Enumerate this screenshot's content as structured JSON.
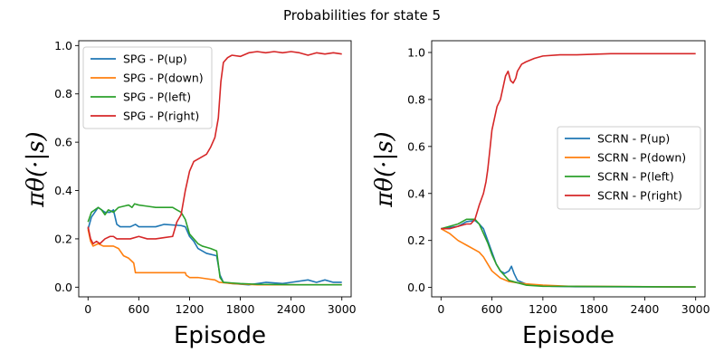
{
  "figure": {
    "title": "Probabilities for state 5"
  },
  "chart_data": [
    {
      "type": "line",
      "xlabel": "Episode",
      "ylabel": "πθ(·|s)",
      "xlim": [
        -110,
        3110
      ],
      "ylim": [
        -0.04,
        1.02
      ],
      "xticks": [
        0,
        600,
        1200,
        1800,
        2400,
        3000
      ],
      "yticks": [
        0.0,
        0.2,
        0.4,
        0.6,
        0.8,
        1.0
      ],
      "grid": false,
      "legend_position": "top-left",
      "series": [
        {
          "name": "SPG - P(up)",
          "color": "#1f77b4",
          "points": [
            [
              0,
              0.24
            ],
            [
              40,
              0.29
            ],
            [
              80,
              0.31
            ],
            [
              120,
              0.33
            ],
            [
              160,
              0.32
            ],
            [
              200,
              0.31
            ],
            [
              260,
              0.31
            ],
            [
              300,
              0.32
            ],
            [
              340,
              0.26
            ],
            [
              380,
              0.25
            ],
            [
              500,
              0.25
            ],
            [
              560,
              0.26
            ],
            [
              600,
              0.25
            ],
            [
              800,
              0.25
            ],
            [
              900,
              0.26
            ],
            [
              1100,
              0.255
            ],
            [
              1150,
              0.25
            ],
            [
              1200,
              0.21
            ],
            [
              1250,
              0.19
            ],
            [
              1300,
              0.16
            ],
            [
              1400,
              0.14
            ],
            [
              1520,
              0.13
            ],
            [
              1560,
              0.05
            ],
            [
              1600,
              0.02
            ],
            [
              1700,
              0.015
            ],
            [
              1900,
              0.01
            ],
            [
              2100,
              0.02
            ],
            [
              2300,
              0.015
            ],
            [
              2400,
              0.02
            ],
            [
              2600,
              0.03
            ],
            [
              2700,
              0.02
            ],
            [
              2800,
              0.03
            ],
            [
              2900,
              0.02
            ],
            [
              3000,
              0.02
            ]
          ]
        },
        {
          "name": "SPG - P(down)",
          "color": "#ff7f0e",
          "points": [
            [
              0,
              0.24
            ],
            [
              30,
              0.19
            ],
            [
              60,
              0.17
            ],
            [
              120,
              0.18
            ],
            [
              180,
              0.17
            ],
            [
              240,
              0.17
            ],
            [
              300,
              0.17
            ],
            [
              360,
              0.16
            ],
            [
              420,
              0.13
            ],
            [
              480,
              0.12
            ],
            [
              540,
              0.1
            ],
            [
              560,
              0.06
            ],
            [
              900,
              0.06
            ],
            [
              1150,
              0.06
            ],
            [
              1160,
              0.05
            ],
            [
              1200,
              0.04
            ],
            [
              1300,
              0.04
            ],
            [
              1400,
              0.035
            ],
            [
              1500,
              0.03
            ],
            [
              1550,
              0.02
            ],
            [
              1700,
              0.015
            ],
            [
              2000,
              0.01
            ],
            [
              2500,
              0.01
            ],
            [
              3000,
              0.01
            ]
          ]
        },
        {
          "name": "SPG - P(left)",
          "color": "#2ca02c",
          "points": [
            [
              0,
              0.27
            ],
            [
              40,
              0.31
            ],
            [
              80,
              0.32
            ],
            [
              120,
              0.33
            ],
            [
              160,
              0.32
            ],
            [
              200,
              0.3
            ],
            [
              240,
              0.32
            ],
            [
              300,
              0.31
            ],
            [
              360,
              0.33
            ],
            [
              420,
              0.335
            ],
            [
              480,
              0.34
            ],
            [
              520,
              0.33
            ],
            [
              550,
              0.345
            ],
            [
              600,
              0.34
            ],
            [
              700,
              0.335
            ],
            [
              800,
              0.33
            ],
            [
              900,
              0.33
            ],
            [
              1000,
              0.33
            ],
            [
              1050,
              0.32
            ],
            [
              1100,
              0.31
            ],
            [
              1150,
              0.28
            ],
            [
              1200,
              0.22
            ],
            [
              1250,
              0.2
            ],
            [
              1300,
              0.18
            ],
            [
              1350,
              0.17
            ],
            [
              1400,
              0.165
            ],
            [
              1450,
              0.16
            ],
            [
              1520,
              0.15
            ],
            [
              1560,
              0.04
            ],
            [
              1600,
              0.02
            ],
            [
              1800,
              0.015
            ],
            [
              2000,
              0.012
            ],
            [
              2500,
              0.01
            ],
            [
              3000,
              0.01
            ]
          ]
        },
        {
          "name": "SPG - P(right)",
          "color": "#d62728",
          "points": [
            [
              0,
              0.25
            ],
            [
              30,
              0.2
            ],
            [
              60,
              0.18
            ],
            [
              100,
              0.19
            ],
            [
              140,
              0.18
            ],
            [
              200,
              0.2
            ],
            [
              260,
              0.21
            ],
            [
              300,
              0.21
            ],
            [
              340,
              0.2
            ],
            [
              400,
              0.2
            ],
            [
              500,
              0.2
            ],
            [
              600,
              0.21
            ],
            [
              700,
              0.2
            ],
            [
              800,
              0.2
            ],
            [
              900,
              0.205
            ],
            [
              1000,
              0.21
            ],
            [
              1050,
              0.27
            ],
            [
              1100,
              0.3
            ],
            [
              1150,
              0.4
            ],
            [
              1200,
              0.48
            ],
            [
              1250,
              0.52
            ],
            [
              1300,
              0.53
            ],
            [
              1400,
              0.55
            ],
            [
              1450,
              0.58
            ],
            [
              1500,
              0.62
            ],
            [
              1540,
              0.7
            ],
            [
              1570,
              0.85
            ],
            [
              1600,
              0.93
            ],
            [
              1650,
              0.95
            ],
            [
              1700,
              0.96
            ],
            [
              1800,
              0.955
            ],
            [
              1900,
              0.97
            ],
            [
              2000,
              0.975
            ],
            [
              2100,
              0.97
            ],
            [
              2200,
              0.975
            ],
            [
              2300,
              0.97
            ],
            [
              2400,
              0.975
            ],
            [
              2500,
              0.97
            ],
            [
              2600,
              0.96
            ],
            [
              2700,
              0.97
            ],
            [
              2800,
              0.965
            ],
            [
              2900,
              0.97
            ],
            [
              3000,
              0.965
            ]
          ]
        }
      ]
    },
    {
      "type": "line",
      "xlabel": "Episode",
      "ylabel": "πθ(·|s)",
      "xlim": [
        -110,
        3110
      ],
      "ylim": [
        -0.04,
        1.05
      ],
      "xticks": [
        0,
        600,
        1200,
        1800,
        2400,
        3000
      ],
      "yticks": [
        0.0,
        0.2,
        0.4,
        0.6,
        0.8,
        1.0
      ],
      "grid": false,
      "legend_position": "center-right",
      "series": [
        {
          "name": "SCRN - P(up)",
          "color": "#1f77b4",
          "points": [
            [
              0,
              0.25
            ],
            [
              100,
              0.255
            ],
            [
              200,
              0.26
            ],
            [
              300,
              0.28
            ],
            [
              400,
              0.285
            ],
            [
              450,
              0.27
            ],
            [
              500,
              0.25
            ],
            [
              550,
              0.2
            ],
            [
              600,
              0.15
            ],
            [
              650,
              0.1
            ],
            [
              700,
              0.07
            ],
            [
              750,
              0.06
            ],
            [
              800,
              0.07
            ],
            [
              830,
              0.09
            ],
            [
              860,
              0.06
            ],
            [
              900,
              0.03
            ],
            [
              1000,
              0.015
            ],
            [
              1100,
              0.01
            ],
            [
              1300,
              0.005
            ],
            [
              1600,
              0.003
            ],
            [
              3000,
              0.002
            ]
          ]
        },
        {
          "name": "SCRN - P(down)",
          "color": "#ff7f0e",
          "points": [
            [
              0,
              0.25
            ],
            [
              50,
              0.24
            ],
            [
              100,
              0.23
            ],
            [
              200,
              0.2
            ],
            [
              300,
              0.18
            ],
            [
              400,
              0.16
            ],
            [
              450,
              0.15
            ],
            [
              500,
              0.13
            ],
            [
              550,
              0.1
            ],
            [
              600,
              0.07
            ],
            [
              700,
              0.04
            ],
            [
              800,
              0.025
            ],
            [
              900,
              0.02
            ],
            [
              1000,
              0.015
            ],
            [
              1200,
              0.01
            ],
            [
              1500,
              0.005
            ],
            [
              3000,
              0.002
            ]
          ]
        },
        {
          "name": "SCRN - P(left)",
          "color": "#2ca02c",
          "points": [
            [
              0,
              0.25
            ],
            [
              100,
              0.26
            ],
            [
              200,
              0.27
            ],
            [
              300,
              0.29
            ],
            [
              350,
              0.29
            ],
            [
              400,
              0.29
            ],
            [
              450,
              0.27
            ],
            [
              500,
              0.23
            ],
            [
              550,
              0.19
            ],
            [
              600,
              0.14
            ],
            [
              650,
              0.1
            ],
            [
              700,
              0.07
            ],
            [
              750,
              0.05
            ],
            [
              800,
              0.03
            ],
            [
              900,
              0.02
            ],
            [
              1000,
              0.01
            ],
            [
              1200,
              0.005
            ],
            [
              3000,
              0.002
            ]
          ]
        },
        {
          "name": "SCRN - P(right)",
          "color": "#d62728",
          "points": [
            [
              0,
              0.25
            ],
            [
              100,
              0.25
            ],
            [
              200,
              0.26
            ],
            [
              300,
              0.27
            ],
            [
              350,
              0.27
            ],
            [
              400,
              0.29
            ],
            [
              450,
              0.35
            ],
            [
              500,
              0.4
            ],
            [
              530,
              0.45
            ],
            [
              550,
              0.5
            ],
            [
              580,
              0.6
            ],
            [
              600,
              0.67
            ],
            [
              630,
              0.72
            ],
            [
              660,
              0.77
            ],
            [
              700,
              0.8
            ],
            [
              730,
              0.85
            ],
            [
              760,
              0.9
            ],
            [
              790,
              0.92
            ],
            [
              820,
              0.88
            ],
            [
              850,
              0.87
            ],
            [
              880,
              0.89
            ],
            [
              900,
              0.92
            ],
            [
              950,
              0.95
            ],
            [
              1000,
              0.96
            ],
            [
              1100,
              0.975
            ],
            [
              1200,
              0.985
            ],
            [
              1400,
              0.99
            ],
            [
              1600,
              0.99
            ],
            [
              2000,
              0.995
            ],
            [
              2500,
              0.995
            ],
            [
              3000,
              0.995
            ]
          ]
        }
      ]
    }
  ]
}
